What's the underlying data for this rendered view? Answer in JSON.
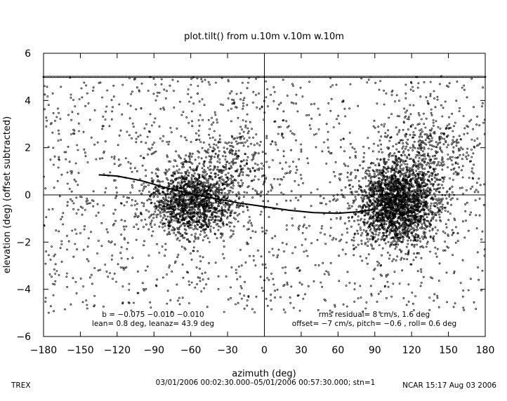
{
  "chart_data": {
    "type": "scatter",
    "title": "plot.tilt() from u.10m v.10m w.10m",
    "xlabel": "azimuth (deg)",
    "ylabel": "elevation (deg)  (offset subtracted)",
    "xlim": [
      -180,
      180
    ],
    "ylim": [
      -6,
      6
    ],
    "x_ticks": [
      -180,
      -150,
      -120,
      -90,
      -60,
      -30,
      0,
      30,
      60,
      90,
      120,
      150,
      180
    ],
    "y_ticks": [
      -6,
      -4,
      -2,
      0,
      2,
      4,
      6
    ],
    "x_tick_labels": [
      "−180",
      "−150",
      "−120",
      "−90",
      "−60",
      "−30",
      "0",
      "30",
      "60",
      "90",
      "120",
      "150",
      "180"
    ],
    "y_tick_labels": [
      "−6",
      "−4",
      "−2",
      "0",
      "2",
      "4",
      "6"
    ],
    "grid": false,
    "reference_lines": {
      "x": 0,
      "y": 0
    },
    "point_color": "#000000",
    "clusters": [
      {
        "x_center": -60,
        "y_center": -0.3,
        "x_spread": 18,
        "y_spread": 0.7,
        "count": 1400
      },
      {
        "x_center": 108,
        "y_center": -0.4,
        "x_spread": 16,
        "y_spread": 0.9,
        "count": 2200
      },
      {
        "x_center": -30,
        "y_center": 1.4,
        "x_spread": 20,
        "y_spread": 0.9,
        "count": 300
      },
      {
        "x_center": 135,
        "y_center": 1.8,
        "x_spread": 18,
        "y_spread": 1.0,
        "count": 350
      }
    ],
    "background_scatter": {
      "x_range": [
        -180,
        180
      ],
      "y_range": [
        -5,
        5
      ],
      "count": 1500
    },
    "saturation_row": {
      "y": 5,
      "x_range": [
        -180,
        180
      ]
    },
    "fit_curve": {
      "x": [
        -135,
        -120,
        -100,
        -80,
        -60,
        -40,
        -20,
        0,
        20,
        40,
        60,
        80,
        90
      ],
      "y": [
        0.85,
        0.8,
        0.6,
        0.3,
        0.05,
        -0.15,
        -0.35,
        -0.5,
        -0.65,
        -0.75,
        -0.78,
        -0.7,
        -0.6
      ]
    },
    "annotations": {
      "left_line1": "b = −0.075 −0.010 −0.010",
      "left_line2": "lean= 0.8 deg, leanaz= 43.9 deg",
      "right_line1": "rms residual= 8 cm/s, 1.6 deg",
      "right_line2": "offset= −7 cm/s, pitch= −0.6 , roll=  0.6 deg"
    }
  },
  "footer": {
    "left": "TREX",
    "center": "03/01/2006 00:02:30.000–05/01/2006 00:57:30.000; stn=1",
    "right": "NCAR 15:17 Aug 03 2006"
  }
}
